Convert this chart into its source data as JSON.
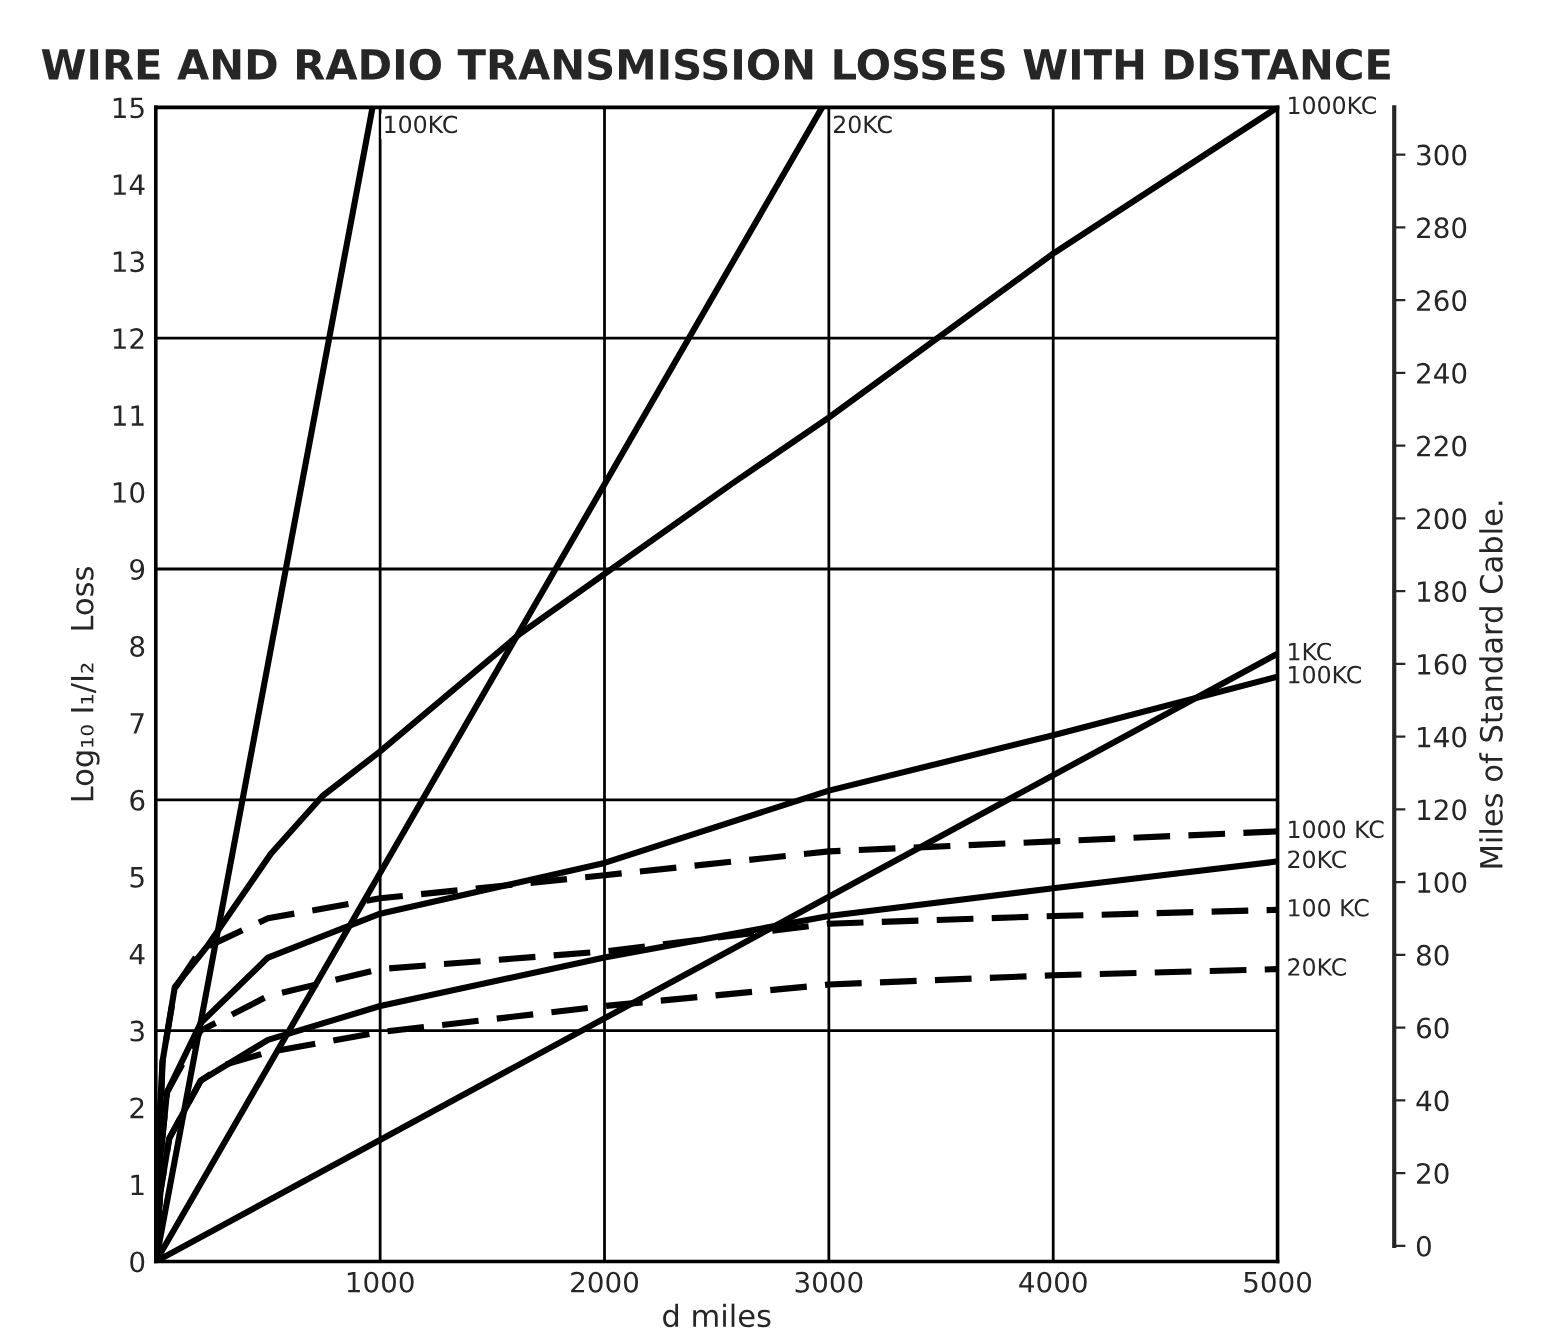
{
  "chart_data": {
    "type": "line",
    "title": "WIRE AND RADIO TRANSMISSION LOSSES WITH DISTANCE",
    "xlabel": "d miles",
    "ylabel": "Log₁₀ I₁/I₂   Loss",
    "y2label": "Miles of Standard Cable.",
    "xlim": [
      0,
      5000
    ],
    "xticks": [
      1000,
      2000,
      3000,
      4000,
      5000
    ],
    "ylim": [
      0,
      15
    ],
    "yticks": [
      0,
      1,
      2,
      3,
      4,
      5,
      6,
      7,
      8,
      9,
      10,
      11,
      12,
      13,
      14,
      15
    ],
    "y2lim": [
      -4.3,
      313
    ],
    "y2ticks": [
      0,
      20,
      40,
      60,
      80,
      100,
      120,
      140,
      160,
      180,
      200,
      220,
      240,
      260,
      280,
      300
    ],
    "grid": "x",
    "legend": false,
    "marker": "none",
    "ref_lines": [
      {
        "axis": "y",
        "value": 3,
        "color": "#000000"
      },
      {
        "axis": "y",
        "value": 6,
        "color": "#000000"
      },
      {
        "axis": "y",
        "value": 9,
        "color": "#000000"
      },
      {
        "axis": "y",
        "value": 12,
        "color": "#000000"
      }
    ],
    "series": [
      {
        "name": "100KC",
        "color": "#000000",
        "line_style": "solid",
        "x": [
          0,
          966
        ],
        "values": [
          0,
          15
        ]
      },
      {
        "name": "20KC",
        "color": "#000000",
        "line_style": "solid",
        "x": [
          0,
          2970
        ],
        "values": [
          0,
          15
        ]
      },
      {
        "name": "1000KC",
        "color": "#000000",
        "line_style": "solid",
        "x": [
          0,
          10,
          30,
          85,
          230,
          513,
          743,
          1000,
          1624,
          2564,
          3000,
          4000,
          5000
        ],
        "values": [
          0,
          1.5,
          2.6,
          3.57,
          4.1,
          5.3,
          6.05,
          6.63,
          8.16,
          10.1,
          10.97,
          13.1,
          15.0
        ]
      },
      {
        "name": "1KC",
        "color": "#000000",
        "line_style": "solid",
        "x": [
          0,
          5000
        ],
        "values": [
          0,
          7.9
        ]
      },
      {
        "name": "100KC",
        "color": "#000000",
        "line_style": "solid",
        "x": [
          0,
          15,
          50,
          200,
          500,
          1000,
          2000,
          3000,
          4000,
          5000
        ],
        "values": [
          0,
          1.2,
          2.2,
          3.1,
          3.95,
          4.52,
          5.18,
          6.12,
          6.84,
          7.6
        ]
      },
      {
        "name": "1000 KC",
        "color": "#000000",
        "line_style": "dashed",
        "x": [
          0,
          30,
          85,
          200,
          500,
          1000,
          2000,
          3000,
          4000,
          5000
        ],
        "values": [
          0,
          2.6,
          3.55,
          4.05,
          4.46,
          4.72,
          5.02,
          5.33,
          5.46,
          5.59
        ]
      },
      {
        "name": "20KC",
        "color": "#000000",
        "line_style": "solid",
        "x": [
          0,
          20,
          60,
          200,
          500,
          1000,
          2000,
          3000,
          4000,
          5000
        ],
        "values": [
          0,
          0.9,
          1.6,
          2.35,
          2.88,
          3.32,
          3.95,
          4.49,
          4.85,
          5.2
        ]
      },
      {
        "name": "100 KC",
        "color": "#000000",
        "line_style": "dashed",
        "x": [
          0,
          15,
          50,
          200,
          500,
          1000,
          2000,
          3000,
          4000,
          5000
        ],
        "values": [
          0,
          1.2,
          2.2,
          3.0,
          3.45,
          3.8,
          4.03,
          4.39,
          4.49,
          4.57
        ]
      },
      {
        "name": "20KC",
        "color": "#000000",
        "line_style": "dashed",
        "x": [
          0,
          20,
          60,
          200,
          300,
          500,
          1000,
          2000,
          3000,
          4000,
          5000
        ],
        "values": [
          0,
          0.9,
          1.6,
          2.35,
          2.55,
          2.72,
          2.98,
          3.32,
          3.6,
          3.72,
          3.8
        ]
      }
    ]
  }
}
